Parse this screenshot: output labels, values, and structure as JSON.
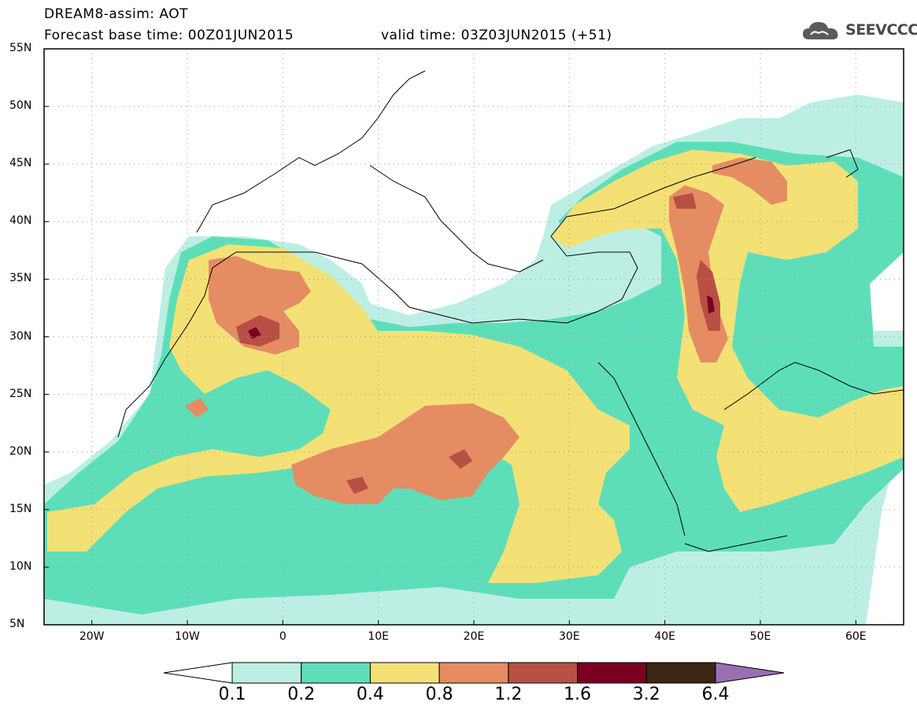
{
  "header": {
    "line1": "DREAM8-assim: AOT",
    "line2": "Forecast base time: 00Z01JUN2015",
    "valid": "valid time: 03Z03JUN2015 (+51)"
  },
  "logo": {
    "text": "SEEVCCC",
    "icon": "cloud-icon"
  },
  "map": {
    "lat_labels": [
      "55N",
      "50N",
      "45N",
      "40N",
      "35N",
      "30N",
      "25N",
      "20N",
      "15N",
      "10N",
      "5N"
    ],
    "lon_labels": [
      "20W",
      "10W",
      "0",
      "10E",
      "20E",
      "30E",
      "40E",
      "50E",
      "60E"
    ],
    "lon_range": [
      -25,
      65
    ],
    "lat_range": [
      5,
      55
    ],
    "grid": true
  },
  "colorbar": {
    "labels": [
      "0.1",
      "0.2",
      "0.4",
      "0.8",
      "1.2",
      "1.6",
      "3.2",
      "6.4"
    ],
    "colors": [
      "#ffffff",
      "#bdeee4",
      "#5ddeb9",
      "#f3e176",
      "#e58c63",
      "#b84f44",
      "#7a0021",
      "#3a2712",
      "#9a6fb0"
    ]
  }
}
